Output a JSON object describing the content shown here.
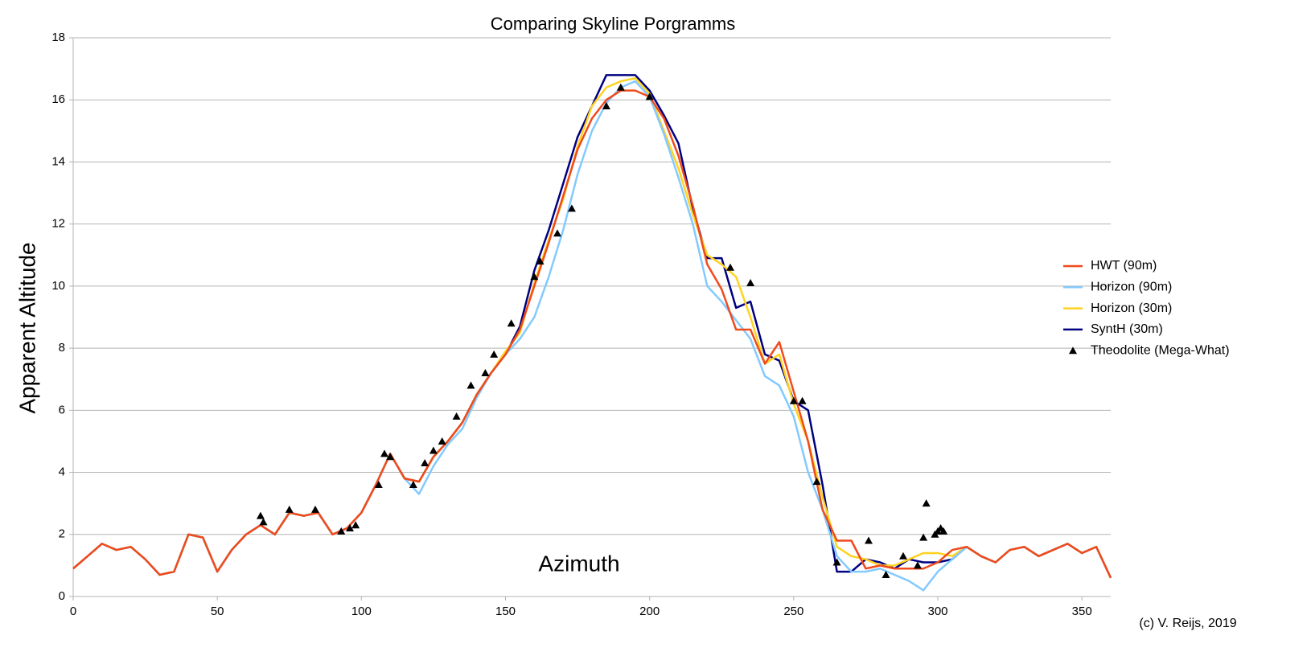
{
  "chart_data": {
    "type": "line",
    "title": "Comparing Skyline Porgramms",
    "xlabel": "Azimuth",
    "ylabel": "Apparent Altitude",
    "annotation": "(c) V. Reijs, 2019",
    "xlim": [
      0,
      360
    ],
    "xticks": [
      0,
      50,
      100,
      150,
      200,
      250,
      300,
      350
    ],
    "ylim": [
      0,
      18
    ],
    "yticks": [
      0,
      2,
      4,
      6,
      8,
      10,
      12,
      14,
      16,
      18
    ],
    "grid": true,
    "legend": "right",
    "x": [
      0,
      5,
      10,
      15,
      20,
      25,
      30,
      35,
      40,
      45,
      50,
      55,
      60,
      65,
      70,
      75,
      80,
      85,
      90,
      95,
      100,
      105,
      110,
      115,
      120,
      125,
      130,
      135,
      140,
      145,
      150,
      155,
      160,
      165,
      170,
      175,
      180,
      185,
      190,
      195,
      200,
      205,
      210,
      215,
      220,
      225,
      230,
      235,
      240,
      245,
      250,
      255,
      260,
      265,
      270,
      275,
      280,
      285,
      290,
      295,
      300,
      305,
      310,
      315,
      320,
      325,
      330,
      335,
      340,
      345,
      350,
      355,
      360
    ],
    "series": [
      {
        "name": "HWT (90m)",
        "color": "#f04a1c",
        "values": [
          0.9,
          1.3,
          1.7,
          1.5,
          1.6,
          1.2,
          0.7,
          0.8,
          2.0,
          1.9,
          0.8,
          1.5,
          2.0,
          2.3,
          2.0,
          2.7,
          2.6,
          2.7,
          2.0,
          2.2,
          2.7,
          3.6,
          4.6,
          3.8,
          3.7,
          4.5,
          5.0,
          5.6,
          6.5,
          7.2,
          7.8,
          8.6,
          10.0,
          11.4,
          12.9,
          14.4,
          15.4,
          16.0,
          16.3,
          16.3,
          16.1,
          15.4,
          14.2,
          12.6,
          10.7,
          9.9,
          8.6,
          8.6,
          7.5,
          8.2,
          6.6,
          5.0,
          2.8,
          1.8,
          1.8,
          0.9,
          1.0,
          0.9,
          0.9,
          0.9,
          1.1,
          1.5,
          1.6,
          1.3,
          1.1,
          1.5,
          1.6,
          1.3,
          1.5,
          1.7,
          1.4,
          1.6,
          0.6
        ]
      },
      {
        "name": "Horizon (90m)",
        "color": "#83caff",
        "values": [
          0.9,
          1.3,
          1.7,
          1.5,
          1.6,
          1.2,
          0.7,
          0.8,
          2.0,
          1.9,
          0.8,
          1.5,
          2.0,
          2.3,
          2.0,
          2.7,
          2.6,
          2.7,
          2.0,
          2.2,
          2.7,
          3.6,
          4.6,
          3.8,
          3.3,
          4.2,
          4.9,
          5.4,
          6.4,
          7.2,
          7.8,
          8.3,
          9.0,
          10.3,
          11.8,
          13.6,
          15.0,
          15.9,
          16.4,
          16.6,
          16.1,
          14.9,
          13.5,
          12.0,
          10.0,
          9.5,
          8.9,
          8.3,
          7.1,
          6.8,
          5.8,
          4.0,
          2.8,
          1.3,
          0.8,
          0.8,
          0.9,
          0.7,
          0.5,
          0.2,
          0.8,
          1.2,
          1.6,
          1.3,
          1.1,
          1.5,
          1.6,
          1.3,
          1.5,
          1.7,
          1.4,
          1.6,
          0.6
        ]
      },
      {
        "name": "Horizon (30m)",
        "color": "#ffd320",
        "values": [
          0.9,
          1.3,
          1.7,
          1.5,
          1.6,
          1.2,
          0.7,
          0.8,
          2.0,
          1.9,
          0.8,
          1.5,
          2.0,
          2.3,
          2.0,
          2.7,
          2.6,
          2.7,
          2.0,
          2.2,
          2.7,
          3.6,
          4.6,
          3.8,
          3.7,
          4.5,
          5.0,
          5.6,
          6.5,
          7.2,
          7.9,
          8.5,
          10.1,
          11.5,
          12.8,
          14.5,
          15.8,
          16.4,
          16.6,
          16.7,
          16.2,
          15.0,
          13.8,
          12.3,
          11.0,
          10.7,
          10.3,
          9.0,
          7.5,
          7.8,
          6.2,
          5.0,
          3.2,
          1.6,
          1.3,
          1.2,
          1.0,
          1.0,
          1.2,
          1.4,
          1.4,
          1.3,
          1.6,
          1.3,
          1.1,
          1.5,
          1.6,
          1.3,
          1.5,
          1.7,
          1.4,
          1.6,
          0.6
        ]
      },
      {
        "name": "SyntH (30m)",
        "color": "#000080",
        "values": [
          0.9,
          1.3,
          1.7,
          1.5,
          1.6,
          1.2,
          0.7,
          0.8,
          2.0,
          1.9,
          0.8,
          1.5,
          2.0,
          2.3,
          2.0,
          2.7,
          2.6,
          2.7,
          2.0,
          2.2,
          2.7,
          3.6,
          4.6,
          3.8,
          3.7,
          4.5,
          5.0,
          5.6,
          6.5,
          7.2,
          7.8,
          8.7,
          10.5,
          11.8,
          13.3,
          14.8,
          15.8,
          16.8,
          16.8,
          16.8,
          16.3,
          15.5,
          14.6,
          12.5,
          10.9,
          10.9,
          9.3,
          9.5,
          7.8,
          7.6,
          6.3,
          6.0,
          3.6,
          0.8,
          0.8,
          1.2,
          1.1,
          0.9,
          1.2,
          1.1,
          1.1,
          1.2,
          1.6,
          1.3,
          1.1,
          1.5,
          1.6,
          1.3,
          1.5,
          1.7,
          1.4,
          1.6,
          0.6
        ]
      },
      {
        "name": "Theodolite (Mega-What)",
        "type": "scatter",
        "color": "#000000",
        "x": [
          65,
          66,
          75,
          84,
          93,
          96,
          98,
          106,
          108,
          110,
          118,
          122,
          125,
          128,
          133,
          138,
          143,
          146,
          152,
          160,
          162,
          168,
          173,
          185,
          190,
          200,
          228,
          235,
          250,
          253,
          258,
          265,
          276,
          282,
          288,
          293,
          295,
          296,
          299,
          300,
          301,
          302
        ],
        "values": [
          2.6,
          2.4,
          2.8,
          2.8,
          2.1,
          2.2,
          2.3,
          3.6,
          4.6,
          4.5,
          3.6,
          4.3,
          4.7,
          5.0,
          5.8,
          6.8,
          7.2,
          7.8,
          8.8,
          10.3,
          10.8,
          11.7,
          12.5,
          15.8,
          16.4,
          16.1,
          10.6,
          10.1,
          6.3,
          6.3,
          3.7,
          1.1,
          1.8,
          0.7,
          1.3,
          1.0,
          1.9,
          3.0,
          2.0,
          2.1,
          2.2,
          2.1
        ]
      }
    ]
  }
}
